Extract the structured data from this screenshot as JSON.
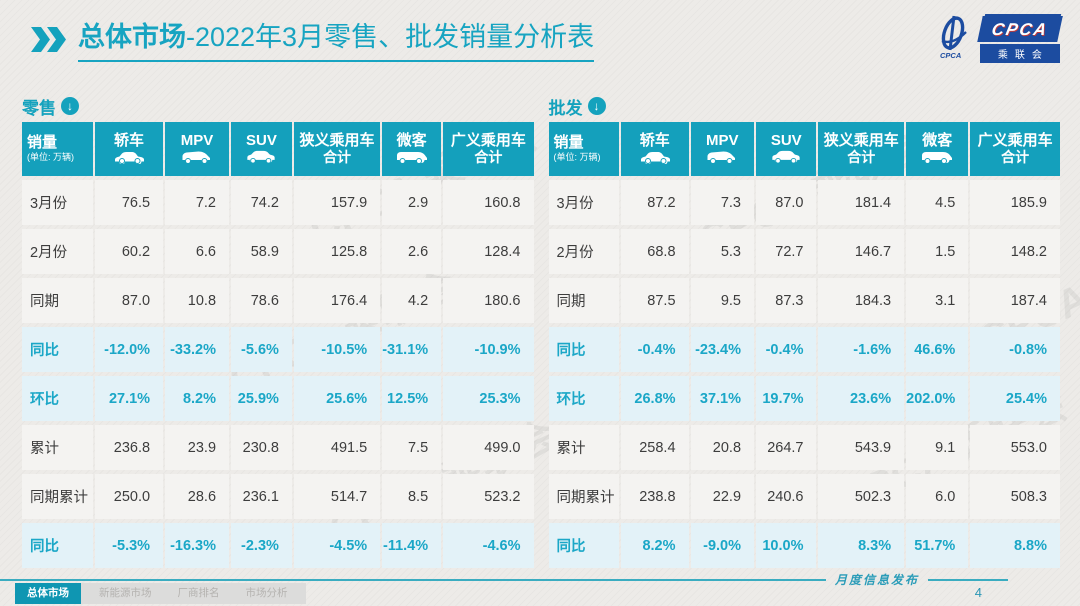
{
  "title": {
    "bold": "总体市场",
    "rest": "-2022年3月零售、批发销量分析表"
  },
  "logo": {
    "acronym": "CPCA",
    "name_cn": "乘联会",
    "emblem": "CPCA"
  },
  "watermark": {
    "text": "CPCA 乘联会"
  },
  "footer": {
    "note": "月度信息发布",
    "page": "4",
    "tabs": [
      {
        "label": "总体市场",
        "active": true
      },
      {
        "label": "新能源市场",
        "active": false
      },
      {
        "label": "厂商排名",
        "active": false
      },
      {
        "label": "市场分析",
        "active": false
      }
    ]
  },
  "colors": {
    "teal_header": "#14a0bc",
    "teal_title": "#17a4c1",
    "percent_text": "#1ba7c7",
    "percent_row_bg": "#e3f2f8",
    "row_bg": "#f4f3f1",
    "page_bg": "#edebe8",
    "active_tab": "#0f96b2",
    "logo_blue": "#1c4ca0"
  },
  "chart_data": [
    {
      "type": "table",
      "title": "零售",
      "columns": [
        {
          "key": "sales",
          "label": "销量",
          "sublabel": "(单位: 万辆)",
          "icon": null
        },
        {
          "key": "sedan",
          "label": "轿车",
          "icon": "sedan-icon"
        },
        {
          "key": "mpv",
          "label": "MPV",
          "icon": "mpv-icon"
        },
        {
          "key": "suv",
          "label": "SUV",
          "icon": "suv-icon"
        },
        {
          "key": "narrow-total",
          "label": "狭义乘用车",
          "label2": "合计",
          "icon": null
        },
        {
          "key": "microvan",
          "label": "微客",
          "icon": "microvan-icon"
        },
        {
          "key": "broad-total",
          "label": "广义乘用车",
          "label2": "合计",
          "icon": null
        }
      ],
      "rows": [
        {
          "label": "3月份",
          "type": "normal",
          "values": [
            "76.5",
            "7.2",
            "74.2",
            "157.9",
            "2.9",
            "160.8"
          ]
        },
        {
          "label": "2月份",
          "type": "normal",
          "values": [
            "60.2",
            "6.6",
            "58.9",
            "125.8",
            "2.6",
            "128.4"
          ]
        },
        {
          "label": "同期",
          "type": "normal",
          "values": [
            "87.0",
            "10.8",
            "78.6",
            "176.4",
            "4.2",
            "180.6"
          ]
        },
        {
          "label": "同比",
          "type": "percent",
          "values": [
            "-12.0%",
            "-33.2%",
            "-5.6%",
            "-10.5%",
            "-31.1%",
            "-10.9%"
          ]
        },
        {
          "label": "环比",
          "type": "percent",
          "values": [
            "27.1%",
            "8.2%",
            "25.9%",
            "25.6%",
            "12.5%",
            "25.3%"
          ]
        },
        {
          "label": "累计",
          "type": "normal",
          "values": [
            "236.8",
            "23.9",
            "230.8",
            "491.5",
            "7.5",
            "499.0"
          ]
        },
        {
          "label": "同期累计",
          "type": "normal",
          "values": [
            "250.0",
            "28.6",
            "236.1",
            "514.7",
            "8.5",
            "523.2"
          ]
        },
        {
          "label": "同比",
          "type": "percent",
          "values": [
            "-5.3%",
            "-16.3%",
            "-2.3%",
            "-4.5%",
            "-11.4%",
            "-4.6%"
          ]
        }
      ]
    },
    {
      "type": "table",
      "title": "批发",
      "columns": [
        {
          "key": "sales",
          "label": "销量",
          "sublabel": "(单位: 万辆)",
          "icon": null
        },
        {
          "key": "sedan",
          "label": "轿车",
          "icon": "sedan-icon"
        },
        {
          "key": "mpv",
          "label": "MPV",
          "icon": "mpv-icon"
        },
        {
          "key": "suv",
          "label": "SUV",
          "icon": "suv-icon"
        },
        {
          "key": "narrow-total",
          "label": "狭义乘用车",
          "label2": "合计",
          "icon": null
        },
        {
          "key": "microvan",
          "label": "微客",
          "icon": "microvan-icon"
        },
        {
          "key": "broad-total",
          "label": "广义乘用车",
          "label2": "合计",
          "icon": null
        }
      ],
      "rows": [
        {
          "label": "3月份",
          "type": "normal",
          "values": [
            "87.2",
            "7.3",
            "87.0",
            "181.4",
            "4.5",
            "185.9"
          ]
        },
        {
          "label": "2月份",
          "type": "normal",
          "values": [
            "68.8",
            "5.3",
            "72.7",
            "146.7",
            "1.5",
            "148.2"
          ]
        },
        {
          "label": "同期",
          "type": "normal",
          "values": [
            "87.5",
            "9.5",
            "87.3",
            "184.3",
            "3.1",
            "187.4"
          ]
        },
        {
          "label": "同比",
          "type": "percent",
          "values": [
            "-0.4%",
            "-23.4%",
            "-0.4%",
            "-1.6%",
            "46.6%",
            "-0.8%"
          ]
        },
        {
          "label": "环比",
          "type": "percent",
          "values": [
            "26.8%",
            "37.1%",
            "19.7%",
            "23.6%",
            "202.0%",
            "25.4%"
          ]
        },
        {
          "label": "累计",
          "type": "normal",
          "values": [
            "258.4",
            "20.8",
            "264.7",
            "543.9",
            "9.1",
            "553.0"
          ]
        },
        {
          "label": "同期累计",
          "type": "normal",
          "values": [
            "238.8",
            "22.9",
            "240.6",
            "502.3",
            "6.0",
            "508.3"
          ]
        },
        {
          "label": "同比",
          "type": "percent",
          "values": [
            "8.2%",
            "-9.0%",
            "10.0%",
            "8.3%",
            "51.7%",
            "8.8%"
          ]
        }
      ]
    }
  ]
}
